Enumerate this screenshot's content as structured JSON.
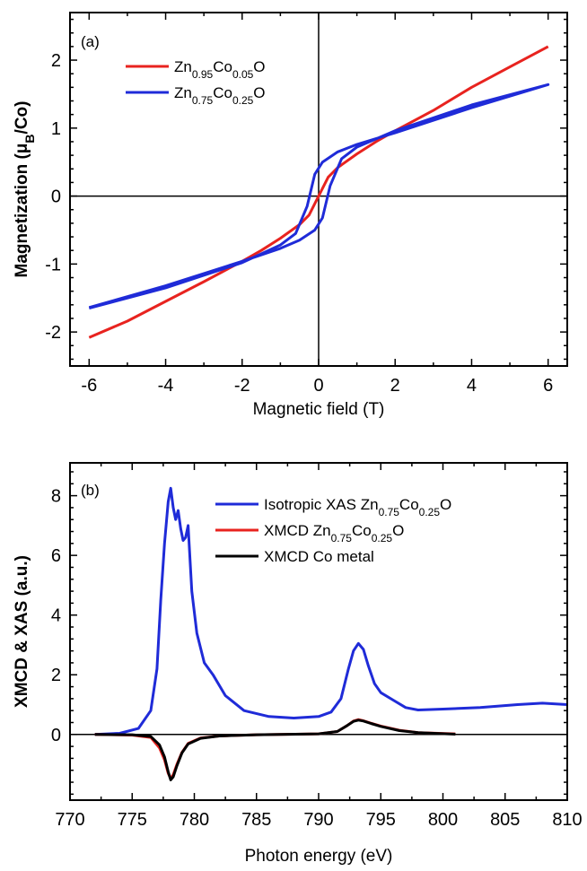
{
  "chart_data": [
    {
      "type": "line",
      "panel_label": "(a)",
      "xlabel": "Magnetic field (T)",
      "ylabel": {
        "main": "Magnetization (μ",
        "sub": "B",
        "end": "/Co)"
      },
      "xlim": [
        -6.5,
        6.5
      ],
      "ylim": [
        -2.5,
        2.7
      ],
      "xticks": [
        -6,
        -4,
        -2,
        0,
        2,
        4,
        6
      ],
      "yticks": [
        -2,
        -1,
        0,
        1,
        2
      ],
      "xtick_labels": [
        "-6",
        "-4",
        "-2",
        "0",
        "2",
        "4",
        "6"
      ],
      "ytick_labels": [
        "-2",
        "-1",
        "0",
        "1",
        "2"
      ],
      "legend_position": "top-left",
      "series": [
        {
          "name": "Zn0.95Co0.05O",
          "name_parts": [
            [
              "Zn",
              ""
            ],
            [
              "0.95",
              "sub"
            ],
            [
              "Co",
              ""
            ],
            [
              "0.05",
              "sub"
            ],
            [
              "O",
              ""
            ]
          ],
          "color": "#e8231f",
          "x": [
            -6,
            -5,
            -4,
            -3,
            -2,
            -1.5,
            -1,
            -0.5,
            -0.25,
            0,
            0.25,
            0.5,
            1,
            1.5,
            2,
            3,
            4,
            5,
            6
          ],
          "y": [
            -2.08,
            -1.84,
            -1.55,
            -1.26,
            -0.96,
            -0.8,
            -0.62,
            -0.42,
            -0.28,
            0.0,
            0.28,
            0.42,
            0.62,
            0.8,
            0.96,
            1.26,
            1.6,
            1.9,
            2.2
          ]
        },
        {
          "name": "Zn0.75Co0.25O",
          "name_parts": [
            [
              "Zn",
              ""
            ],
            [
              "0.75",
              "sub"
            ],
            [
              "Co",
              ""
            ],
            [
              "0.25",
              "sub"
            ],
            [
              "O",
              ""
            ]
          ],
          "color": "#1f2bd8",
          "x": [
            -6,
            -4,
            -2,
            -1,
            -0.6,
            -0.3,
            -0.1,
            0.1,
            0.5,
            1,
            2,
            4,
            6,
            4,
            2,
            1,
            0.6,
            0.3,
            0.1,
            -0.1,
            -0.5,
            -1,
            -2,
            -4,
            -6
          ],
          "y": [
            -1.65,
            -1.35,
            -0.98,
            -0.72,
            -0.55,
            -0.15,
            0.32,
            0.5,
            0.65,
            0.76,
            0.93,
            1.3,
            1.64,
            1.34,
            0.96,
            0.72,
            0.55,
            0.15,
            -0.32,
            -0.5,
            -0.65,
            -0.77,
            -0.96,
            -1.32,
            -1.64
          ]
        }
      ]
    },
    {
      "type": "line",
      "panel_label": "(b)",
      "xlabel": "Photon energy (eV)",
      "ylabel": {
        "main": "XMCD & XAS (a.u.)",
        "sub": "",
        "end": ""
      },
      "xlim": [
        770,
        810
      ],
      "ylim": [
        -2.2,
        9.1
      ],
      "xticks": [
        770,
        775,
        780,
        785,
        790,
        795,
        800,
        805,
        810
      ],
      "yticks": [
        0,
        2,
        4,
        6,
        8
      ],
      "xtick_labels": [
        "770",
        "775",
        "780",
        "785",
        "790",
        "795",
        "800",
        "805",
        "810"
      ],
      "ytick_labels": [
        "0",
        "2",
        "4",
        "6",
        "8"
      ],
      "legend_position": "top-right",
      "series": [
        {
          "name": "Isotropic XAS Zn0.75Co0.25O",
          "name_parts": [
            [
              "Isotropic XAS Zn",
              ""
            ],
            [
              "0.75",
              "sub"
            ],
            [
              "Co",
              ""
            ],
            [
              "0.25",
              "sub"
            ],
            [
              "O",
              ""
            ]
          ],
          "color": "#1f2bd8",
          "x": [
            772,
            774,
            775.5,
            776.5,
            777,
            777.3,
            777.6,
            777.9,
            778.1,
            778.3,
            778.5,
            778.7,
            778.9,
            779.1,
            779.3,
            779.5,
            779.8,
            780.2,
            780.8,
            781.5,
            782.5,
            784,
            786,
            788,
            790,
            791,
            791.8,
            792.4,
            792.8,
            793.2,
            793.6,
            794,
            794.5,
            795,
            796,
            797,
            798,
            800,
            803,
            806,
            808,
            810
          ],
          "y": [
            0.0,
            0.04,
            0.2,
            0.8,
            2.2,
            4.5,
            6.4,
            7.8,
            8.25,
            7.6,
            7.2,
            7.5,
            6.9,
            6.5,
            6.6,
            7.0,
            4.8,
            3.4,
            2.4,
            2.0,
            1.3,
            0.8,
            0.6,
            0.55,
            0.6,
            0.75,
            1.2,
            2.2,
            2.8,
            3.05,
            2.85,
            2.3,
            1.7,
            1.4,
            1.15,
            0.9,
            0.82,
            0.85,
            0.9,
            1.0,
            1.05,
            1.0
          ]
        },
        {
          "name": "XMCD Zn0.75Co0.25O",
          "name_parts": [
            [
              "XMCD Zn",
              ""
            ],
            [
              "0.75",
              "sub"
            ],
            [
              "Co",
              ""
            ],
            [
              "0.25",
              "sub"
            ],
            [
              "O",
              ""
            ]
          ],
          "color": "#e8231f",
          "x": [
            772,
            775,
            776.5,
            777.2,
            777.6,
            777.9,
            778.1,
            778.3,
            778.6,
            779,
            779.5,
            780.5,
            782,
            785,
            790,
            791.5,
            792.3,
            792.8,
            793.2,
            793.6,
            794.2,
            795,
            796.5,
            798,
            801
          ],
          "y": [
            0.0,
            -0.02,
            -0.1,
            -0.45,
            -0.85,
            -1.3,
            -1.48,
            -1.35,
            -1.0,
            -0.6,
            -0.3,
            -0.12,
            -0.05,
            -0.01,
            0.02,
            0.1,
            0.3,
            0.45,
            0.5,
            0.46,
            0.38,
            0.28,
            0.14,
            0.06,
            0.02
          ]
        },
        {
          "name": "XMCD Co metal",
          "name_parts": [
            [
              "XMCD Co metal",
              ""
            ]
          ],
          "color": "#000000",
          "x": [
            772,
            775,
            776.5,
            777.2,
            777.6,
            777.9,
            778.1,
            778.3,
            778.6,
            779,
            779.5,
            780.5,
            782,
            785,
            790,
            791.5,
            792.3,
            792.8,
            793.2,
            793.6,
            794.2,
            795,
            796.5,
            798,
            801
          ],
          "y": [
            0.0,
            -0.01,
            -0.07,
            -0.35,
            -0.75,
            -1.25,
            -1.52,
            -1.42,
            -1.05,
            -0.62,
            -0.32,
            -0.13,
            -0.05,
            -0.01,
            0.02,
            0.1,
            0.3,
            0.44,
            0.48,
            0.45,
            0.37,
            0.27,
            0.13,
            0.06,
            0.01
          ]
        }
      ]
    }
  ]
}
